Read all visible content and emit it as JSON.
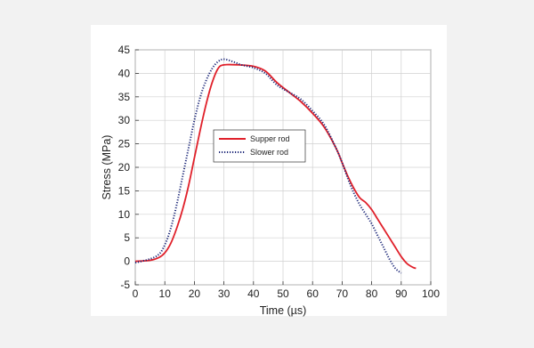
{
  "chart_data": {
    "type": "line",
    "xlabel": "Time (µs)",
    "ylabel": "Stress (MPa)",
    "xlim": [
      0,
      100
    ],
    "ylim": [
      -5,
      45
    ],
    "xticks": [
      0,
      10,
      20,
      30,
      40,
      50,
      60,
      70,
      80,
      90,
      100
    ],
    "yticks": [
      -5,
      0,
      5,
      10,
      15,
      20,
      25,
      30,
      35,
      40,
      45
    ],
    "grid": true,
    "legend_position": "center-left",
    "series": [
      {
        "name": "Supper rod",
        "color": "#e0202a",
        "style": "solid",
        "x": [
          0,
          5,
          8,
          10,
          12,
          14,
          16,
          18,
          20,
          22,
          24,
          26,
          28,
          30,
          35,
          40,
          44,
          48,
          52,
          56,
          60,
          64,
          68,
          70,
          72,
          74,
          76,
          78,
          80,
          82,
          84,
          86,
          88,
          90,
          92,
          94,
          95
        ],
        "y": [
          0,
          0.2,
          0.8,
          1.8,
          3.8,
          7,
          11,
          16,
          22,
          28,
          33.5,
          38,
          41,
          41.8,
          41.8,
          41.5,
          40.5,
          38,
          36,
          34,
          31.5,
          28.5,
          24,
          21,
          18,
          15.5,
          13.5,
          12.5,
          11,
          9,
          7,
          5,
          3,
          1,
          -0.5,
          -1.3,
          -1.5
        ]
      },
      {
        "name": "Slower rod",
        "color": "#1f2a7a",
        "style": "dotted",
        "x": [
          0,
          5,
          8,
          10,
          12,
          14,
          16,
          18,
          20,
          22,
          24,
          26,
          28,
          30,
          33,
          36,
          40,
          44,
          48,
          52,
          56,
          60,
          64,
          68,
          70,
          72,
          74,
          76,
          78,
          80,
          82,
          84,
          86,
          88,
          90
        ],
        "y": [
          -0.3,
          0.5,
          1.5,
          3.5,
          7,
          12,
          18,
          24,
          30,
          35,
          38.5,
          41,
          42.5,
          43,
          42.5,
          41.8,
          41.2,
          40,
          37.5,
          36,
          34.5,
          32,
          29,
          24,
          21,
          17.5,
          14.5,
          12,
          10,
          8,
          5.5,
          3,
          0.5,
          -1.5,
          -2.5
        ]
      }
    ]
  }
}
